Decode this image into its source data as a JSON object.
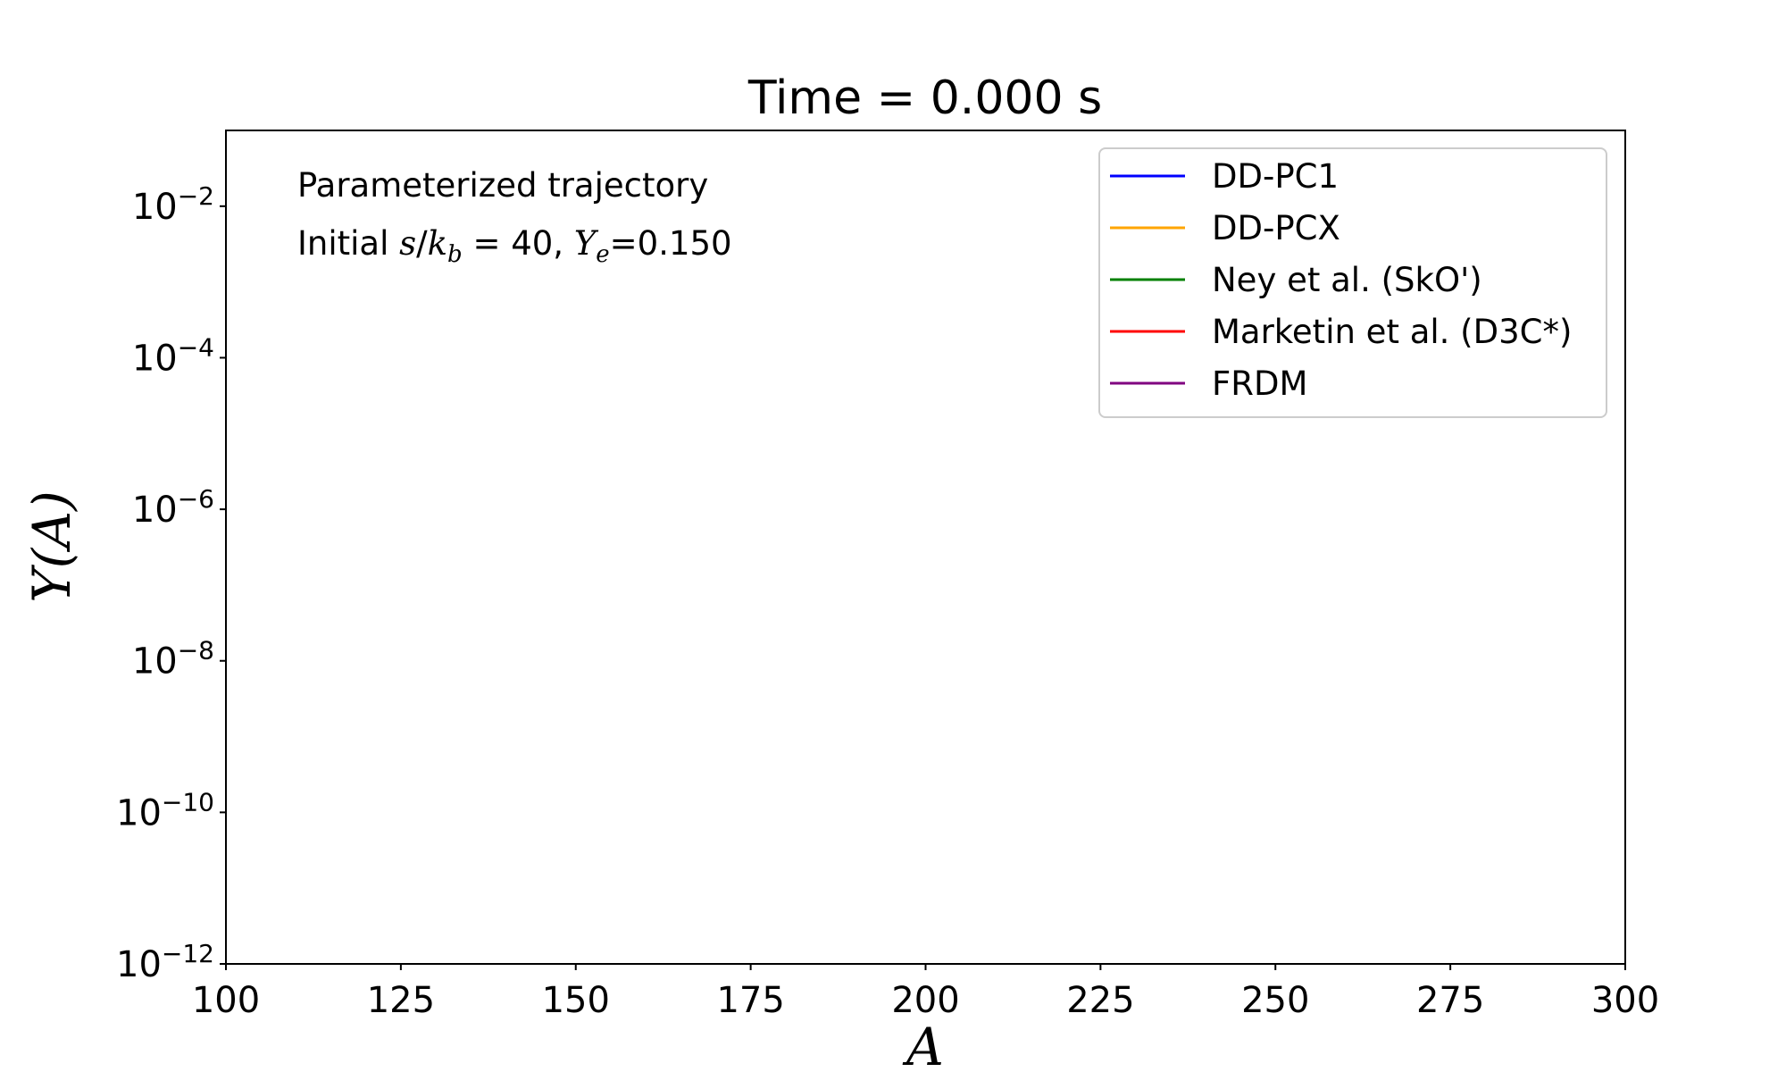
{
  "chart_data": {
    "type": "line",
    "title": "Time = 0.000 s",
    "xlabel": "A",
    "ylabel": "Y(A)",
    "xlim": [
      100,
      300
    ],
    "ylim": [
      1e-12,
      0.1
    ],
    "yscale": "log",
    "x_ticks": [
      100,
      125,
      150,
      175,
      200,
      225,
      250,
      275,
      300
    ],
    "y_ticks": [
      {
        "exp": -2,
        "label": "10",
        "sup": "−2"
      },
      {
        "exp": -4,
        "label": "10",
        "sup": "−4"
      },
      {
        "exp": -6,
        "label": "10",
        "sup": "−6"
      },
      {
        "exp": -8,
        "label": "10",
        "sup": "−8"
      },
      {
        "exp": -10,
        "label": "10",
        "sup": "−10"
      },
      {
        "exp": -12,
        "label": "10",
        "sup": "−12"
      }
    ],
    "grid": false,
    "legend_position": "top-right",
    "series": [
      {
        "name": "DD-PC1",
        "color": "#0000ff",
        "x": [],
        "y": []
      },
      {
        "name": "DD-PCX",
        "color": "#ffa500",
        "x": [],
        "y": []
      },
      {
        "name": "Ney et al. (SkO')",
        "color": "#008000",
        "x": [],
        "y": []
      },
      {
        "name": "Marketin et al. (D3C*)",
        "color": "#ff0000",
        "x": [],
        "y": []
      },
      {
        "name": "FRDM",
        "color": "#800080",
        "x": [],
        "y": []
      }
    ],
    "annotations": {
      "line1": "Parameterized trajectory",
      "line2_prefix": "Initial ",
      "line2_s": "s",
      "line2_slash": "/",
      "line2_k": "k",
      "line2_b": "b",
      "line2_eq": " = 40, ",
      "line2_Y": "Y",
      "line2_e": "e",
      "line2_val": "=0.150"
    }
  }
}
